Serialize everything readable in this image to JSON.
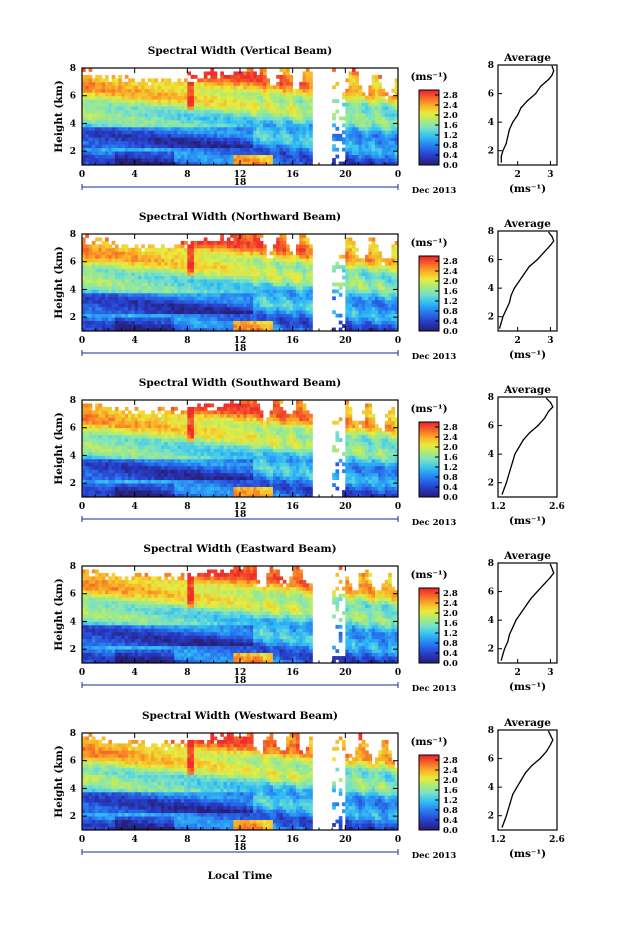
{
  "figure": {
    "xlabel_bottom": "Local Time",
    "date_label": "Dec 2013",
    "day_label": "18"
  },
  "chart_data": [
    {
      "type": "heatmap",
      "title": "Spectral Width (Vertical Beam)",
      "ylabel": "Height (km)",
      "xlabel": "Local Time",
      "x_ticks": [
        "0",
        "4",
        "8",
        "12",
        "16",
        "20",
        "0"
      ],
      "y_ticks": [
        "2",
        "4",
        "6",
        "8"
      ],
      "xlim": [
        0,
        24
      ],
      "ylim": [
        1,
        8
      ],
      "colorbar": {
        "unit": "(ms⁻¹)",
        "ticks": [
          "2.8",
          "2.4",
          "2.0",
          "1.6",
          "1.2",
          "0.8",
          "0.4",
          "0.0"
        ],
        "range": [
          0.0,
          3.0
        ]
      },
      "profile": {
        "title": "Average",
        "xlabel": "(ms⁻¹)",
        "x_ticks": [
          "2",
          "3"
        ],
        "xlim": [
          1.4,
          3.2
        ],
        "ylim": [
          1,
          8
        ],
        "y_ticks": [
          "2",
          "4",
          "6",
          "8"
        ],
        "heights": [
          1.2,
          1.6,
          2.0,
          2.5,
          3.0,
          3.5,
          4.0,
          4.5,
          5.0,
          5.5,
          6.0,
          6.5,
          7.0,
          7.3,
          7.6,
          7.9
        ],
        "values": [
          1.5,
          1.5,
          1.55,
          1.65,
          1.7,
          1.75,
          1.85,
          2.0,
          2.1,
          2.3,
          2.55,
          2.7,
          2.95,
          3.05,
          3.1,
          3.05
        ]
      }
    },
    {
      "type": "heatmap",
      "title": "Spectral Width (Northward Beam)",
      "ylabel": "Height (km)",
      "xlabel": "Local Time",
      "x_ticks": [
        "0",
        "4",
        "8",
        "12",
        "16",
        "20",
        "0"
      ],
      "y_ticks": [
        "2",
        "4",
        "6",
        "8"
      ],
      "xlim": [
        0,
        24
      ],
      "ylim": [
        1,
        8
      ],
      "colorbar": {
        "unit": "(ms⁻¹)",
        "ticks": [
          "2.8",
          "2.4",
          "2.0",
          "1.6",
          "1.2",
          "0.8",
          "0.4",
          "0.0"
        ],
        "range": [
          0.0,
          3.0
        ]
      },
      "profile": {
        "title": "Average",
        "xlabel": "(ms⁻¹)",
        "x_ticks": [
          "2",
          "3"
        ],
        "xlim": [
          1.4,
          3.2
        ],
        "ylim": [
          1,
          8
        ],
        "y_ticks": [
          "2",
          "4",
          "6",
          "8"
        ],
        "heights": [
          1.2,
          1.6,
          2.0,
          2.5,
          3.0,
          3.5,
          4.0,
          4.5,
          5.0,
          5.5,
          6.0,
          6.5,
          7.0,
          7.3,
          7.6,
          7.9
        ],
        "values": [
          1.45,
          1.5,
          1.55,
          1.65,
          1.75,
          1.8,
          1.9,
          2.05,
          2.2,
          2.35,
          2.6,
          2.8,
          3.0,
          3.1,
          3.05,
          2.95
        ]
      }
    },
    {
      "type": "heatmap",
      "title": "Spectral Width (Southward Beam)",
      "ylabel": "Height (km)",
      "xlabel": "Local Time",
      "x_ticks": [
        "0",
        "4",
        "8",
        "12",
        "16",
        "20",
        "0"
      ],
      "y_ticks": [
        "2",
        "4",
        "6",
        "8"
      ],
      "xlim": [
        0,
        24
      ],
      "ylim": [
        1,
        8
      ],
      "colorbar": {
        "unit": "(ms⁻¹)",
        "ticks": [
          "2.8",
          "2.4",
          "2.0",
          "1.6",
          "1.2",
          "0.8",
          "0.4",
          "0.0"
        ],
        "range": [
          0.0,
          3.0
        ]
      },
      "profile": {
        "title": "Average",
        "xlabel": "(ms⁻¹)",
        "x_ticks": [
          "1.2",
          "2.6"
        ],
        "xlim": [
          1.2,
          2.6
        ],
        "ylim": [
          1,
          8
        ],
        "y_ticks": [
          "2",
          "4",
          "6",
          "8"
        ],
        "heights": [
          1.2,
          1.6,
          2.0,
          2.5,
          3.0,
          3.5,
          4.0,
          4.5,
          5.0,
          5.5,
          6.0,
          6.5,
          7.0,
          7.3,
          7.6,
          7.9
        ],
        "values": [
          1.3,
          1.35,
          1.4,
          1.45,
          1.5,
          1.55,
          1.6,
          1.7,
          1.8,
          1.95,
          2.15,
          2.3,
          2.4,
          2.5,
          2.45,
          2.35
        ]
      }
    },
    {
      "type": "heatmap",
      "title": "Spectral Width (Eastward Beam)",
      "ylabel": "Height (km)",
      "xlabel": "Local Time",
      "x_ticks": [
        "0",
        "4",
        "8",
        "12",
        "16",
        "20",
        "0"
      ],
      "y_ticks": [
        "2",
        "4",
        "6",
        "8"
      ],
      "xlim": [
        0,
        24
      ],
      "ylim": [
        1,
        8
      ],
      "colorbar": {
        "unit": "(ms⁻¹)",
        "ticks": [
          "2.8",
          "2.4",
          "2.0",
          "1.6",
          "1.2",
          "0.8",
          "0.4",
          "0.0"
        ],
        "range": [
          0.0,
          3.0
        ]
      },
      "profile": {
        "title": "Average",
        "xlabel": "(ms⁻¹)",
        "x_ticks": [
          "2",
          "3"
        ],
        "xlim": [
          1.4,
          3.2
        ],
        "ylim": [
          1,
          8
        ],
        "y_ticks": [
          "2",
          "4",
          "6",
          "8"
        ],
        "heights": [
          1.2,
          1.6,
          2.0,
          2.5,
          3.0,
          3.5,
          4.0,
          4.5,
          5.0,
          5.5,
          6.0,
          6.5,
          7.0,
          7.3,
          7.6,
          7.9
        ],
        "values": [
          1.5,
          1.55,
          1.6,
          1.7,
          1.75,
          1.85,
          1.95,
          2.1,
          2.25,
          2.4,
          2.6,
          2.8,
          3.0,
          3.1,
          3.05,
          3.0
        ]
      }
    },
    {
      "type": "heatmap",
      "title": "Spectral Width (Westward Beam)",
      "ylabel": "Height (km)",
      "xlabel": "Local Time",
      "x_ticks": [
        "0",
        "4",
        "8",
        "12",
        "16",
        "20",
        "0"
      ],
      "y_ticks": [
        "2",
        "4",
        "6",
        "8"
      ],
      "xlim": [
        0,
        24
      ],
      "ylim": [
        1,
        8
      ],
      "colorbar": {
        "unit": "(ms⁻¹)",
        "ticks": [
          "2.8",
          "2.4",
          "2.0",
          "1.6",
          "1.2",
          "0.8",
          "0.4",
          "0.0"
        ],
        "range": [
          0.0,
          3.0
        ]
      },
      "profile": {
        "title": "Average",
        "xlabel": "(ms⁻¹)",
        "x_ticks": [
          "1.2",
          "2.6"
        ],
        "xlim": [
          1.2,
          2.6
        ],
        "ylim": [
          1,
          8
        ],
        "y_ticks": [
          "2",
          "4",
          "6",
          "8"
        ],
        "heights": [
          1.2,
          1.6,
          2.0,
          2.5,
          3.0,
          3.5,
          4.0,
          4.5,
          5.0,
          5.5,
          6.0,
          6.5,
          7.0,
          7.3,
          7.6,
          7.9
        ],
        "values": [
          1.3,
          1.35,
          1.4,
          1.45,
          1.5,
          1.55,
          1.65,
          1.75,
          1.85,
          2.0,
          2.2,
          2.35,
          2.45,
          2.5,
          2.45,
          2.4
        ]
      }
    }
  ]
}
